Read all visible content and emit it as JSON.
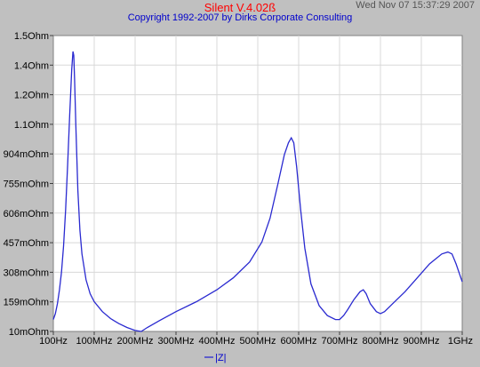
{
  "header": {
    "app_title": "Silent V.4.02ß",
    "copyright": "Copyright 1992-2007 by Dirks Corporate Consulting",
    "timestamp": "Wed Nov 07 15:37:29 2007"
  },
  "colors": {
    "background": "#c0c0c0",
    "plot_area": "#ffffff",
    "grid": "#d8d8d8",
    "trace": "#2a2ad0",
    "title": "#ff0000",
    "copyright": "#0000cc"
  },
  "chart_data": {
    "type": "line",
    "title": "",
    "xlabel": "",
    "ylabel": "",
    "grid": true,
    "legend_position": "bottom-center",
    "x_tick_labels": [
      "100Hz",
      "100MHz",
      "200MHz",
      "300MHz",
      "400MHz",
      "500MHz",
      "600MHz",
      "700MHz",
      "800MHz",
      "900MHz",
      "1GHz"
    ],
    "y_tick_labels": [
      "10mOhm",
      "159mOhm",
      "308mOhm",
      "457mOhm",
      "606mOhm",
      "755mOhm",
      "904mOhm",
      "1.1Ohm",
      "1.2Ohm",
      "1.4Ohm",
      "1.5Ohm"
    ],
    "xlim": [
      0,
      1000
    ],
    "ylim": [
      0.01,
      1.5
    ],
    "x_unit": "MHz",
    "y_unit": "Ohm",
    "series": [
      {
        "name": "|Z|",
        "x": [
          0,
          5,
          10,
          15,
          20,
          25,
          30,
          35,
          40,
          45,
          48,
          50,
          52,
          55,
          60,
          65,
          70,
          80,
          90,
          100,
          120,
          140,
          160,
          180,
          200,
          215,
          230,
          260,
          300,
          350,
          400,
          440,
          480,
          510,
          530,
          550,
          565,
          575,
          582,
          588,
          595,
          605,
          615,
          630,
          650,
          670,
          690,
          700,
          710,
          720,
          735,
          750,
          758,
          765,
          775,
          790,
          800,
          810,
          830,
          860,
          890,
          920,
          950,
          965,
          975,
          985,
          995,
          1000
        ],
        "y": [
          0.07,
          0.1,
          0.15,
          0.22,
          0.31,
          0.44,
          0.62,
          0.85,
          1.1,
          1.33,
          1.42,
          1.4,
          1.28,
          1.05,
          0.72,
          0.52,
          0.4,
          0.27,
          0.2,
          0.16,
          0.11,
          0.075,
          0.05,
          0.03,
          0.015,
          0.01,
          0.03,
          0.065,
          0.11,
          0.16,
          0.22,
          0.28,
          0.36,
          0.46,
          0.58,
          0.76,
          0.9,
          0.96,
          0.985,
          0.96,
          0.84,
          0.62,
          0.43,
          0.25,
          0.14,
          0.09,
          0.07,
          0.07,
          0.09,
          0.12,
          0.17,
          0.21,
          0.22,
          0.2,
          0.15,
          0.11,
          0.1,
          0.11,
          0.15,
          0.21,
          0.28,
          0.35,
          0.4,
          0.41,
          0.4,
          0.35,
          0.29,
          0.26
        ]
      }
    ]
  }
}
